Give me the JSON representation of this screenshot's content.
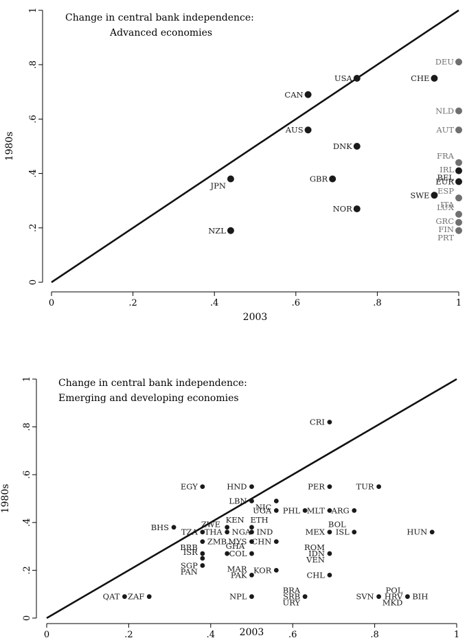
{
  "chart_data": [
    {
      "type": "scatter",
      "title": [
        "Change in central bank independence:",
        "Advanced economies"
      ],
      "xlabel": "2003",
      "ylabel": "1980s",
      "xlim": [
        0,
        1
      ],
      "ylim": [
        0,
        1
      ],
      "xticks": [
        "0",
        ".2",
        ".4",
        ".6",
        ".8",
        "1"
      ],
      "yticks": [
        "0",
        ".2",
        ".4",
        ".6",
        ".8",
        "1"
      ],
      "reference_line": "45-degree",
      "colors": {
        "dark": "#1a1a1a",
        "gray": "#707070"
      },
      "points": [
        {
          "label": "USA",
          "x": 0.75,
          "y": 0.75,
          "color": "dark",
          "pos": "left"
        },
        {
          "label": "CHE",
          "x": 0.94,
          "y": 0.75,
          "color": "dark",
          "pos": "left"
        },
        {
          "label": "CAN",
          "x": 0.63,
          "y": 0.69,
          "color": "dark",
          "pos": "left"
        },
        {
          "label": "AUS",
          "x": 0.63,
          "y": 0.56,
          "color": "dark",
          "pos": "left"
        },
        {
          "label": "DNK",
          "x": 0.75,
          "y": 0.5,
          "color": "dark",
          "pos": "left"
        },
        {
          "label": "GBR",
          "x": 0.69,
          "y": 0.38,
          "color": "dark",
          "pos": "left"
        },
        {
          "label": "JPN",
          "x": 0.44,
          "y": 0.38,
          "color": "dark",
          "pos": "left-below"
        },
        {
          "label": "NOR",
          "x": 0.75,
          "y": 0.27,
          "color": "dark",
          "pos": "left"
        },
        {
          "label": "SWE",
          "x": 0.94,
          "y": 0.32,
          "color": "dark",
          "pos": "left"
        },
        {
          "label": "NZL",
          "x": 0.44,
          "y": 0.19,
          "color": "dark",
          "pos": "left"
        },
        {
          "label": "DEU",
          "x": 1.0,
          "y": 0.81,
          "color": "gray",
          "pos": "left"
        },
        {
          "label": "NLD",
          "x": 1.0,
          "y": 0.63,
          "color": "gray",
          "pos": "left"
        },
        {
          "label": "AUT",
          "x": 1.0,
          "y": 0.56,
          "color": "gray",
          "pos": "left"
        },
        {
          "label": "FRA",
          "x": 1.0,
          "y": 0.44,
          "color": "gray",
          "pos": "left-above"
        },
        {
          "label": "IRL",
          "x": 1.0,
          "y": 0.44,
          "color": "gray",
          "pos": "left-below"
        },
        {
          "label": "BEL",
          "x": 1.0,
          "y": 0.41,
          "color": "dark",
          "pos": "left-below"
        },
        {
          "label": "EUR",
          "x": 1.0,
          "y": 0.37,
          "color": "dark",
          "pos": "left-label"
        },
        {
          "label": "ESP",
          "x": 1.0,
          "y": 0.31,
          "color": "gray",
          "pos": "left-above"
        },
        {
          "label": "ITA",
          "x": 1.0,
          "y": 0.31,
          "color": "gray",
          "pos": "left-below"
        },
        {
          "label": "LUX",
          "x": 1.0,
          "y": 0.25,
          "color": "gray",
          "pos": "left-above"
        },
        {
          "label": "GRC",
          "x": 1.0,
          "y": 0.25,
          "color": "gray",
          "pos": "left-below"
        },
        {
          "label": "FIN",
          "x": 1.0,
          "y": 0.22,
          "color": "gray",
          "pos": "left-below"
        },
        {
          "label": "PRT",
          "x": 1.0,
          "y": 0.19,
          "color": "gray",
          "pos": "left-below"
        }
      ]
    },
    {
      "type": "scatter",
      "title": [
        "Change in central bank independence:",
        "Emerging and developing economies"
      ],
      "xlabel": "2003",
      "ylabel": "1980s",
      "xlim": [
        0,
        1
      ],
      "ylim": [
        0,
        1
      ],
      "xticks": [
        "0",
        ".2",
        ".4",
        ".6",
        ".8",
        "1"
      ],
      "yticks": [
        "0",
        ".2",
        ".4",
        ".6",
        ".8",
        "1"
      ],
      "reference_line": "45-degree",
      "colors": {
        "dark": "#1a1a1a",
        "gray": "#707070"
      },
      "points": [
        {
          "label": "CRI",
          "x": 0.69,
          "y": 0.82,
          "color": "dark",
          "pos": "left"
        },
        {
          "label": "EGY",
          "x": 0.38,
          "y": 0.55,
          "color": "dark",
          "pos": "left"
        },
        {
          "label": "HND",
          "x": 0.5,
          "y": 0.55,
          "color": "dark",
          "pos": "left"
        },
        {
          "label": "PER",
          "x": 0.69,
          "y": 0.55,
          "color": "dark",
          "pos": "left"
        },
        {
          "label": "TUR",
          "x": 0.81,
          "y": 0.55,
          "color": "dark",
          "pos": "left"
        },
        {
          "label": "LBN",
          "x": 0.5,
          "y": 0.49,
          "color": "dark",
          "pos": "left"
        },
        {
          "label": "NIC",
          "x": 0.56,
          "y": 0.49,
          "color": "dark",
          "pos": "left-below"
        },
        {
          "label": "UGA",
          "x": 0.56,
          "y": 0.45,
          "color": "dark",
          "pos": "left"
        },
        {
          "label": "PHL",
          "x": 0.63,
          "y": 0.45,
          "color": "dark",
          "pos": "left"
        },
        {
          "label": "MLT",
          "x": 0.69,
          "y": 0.45,
          "color": "dark",
          "pos": "left"
        },
        {
          "label": "ARG",
          "x": 0.75,
          "y": 0.45,
          "color": "dark",
          "pos": "left"
        },
        {
          "label": "KEN",
          "x": 0.44,
          "y": 0.38,
          "color": "dark",
          "pos": "right-above"
        },
        {
          "label": "ETH",
          "x": 0.5,
          "y": 0.38,
          "color": "dark",
          "pos": "right-above"
        },
        {
          "label": "BHS",
          "x": 0.31,
          "y": 0.38,
          "color": "dark",
          "pos": "left"
        },
        {
          "label": "ZWE",
          "x": 0.38,
          "y": 0.36,
          "color": "dark",
          "pos": "right-above"
        },
        {
          "label": "TZA",
          "x": 0.38,
          "y": 0.36,
          "color": "dark",
          "pos": "left"
        },
        {
          "label": "THA",
          "x": 0.44,
          "y": 0.36,
          "color": "dark",
          "pos": "left"
        },
        {
          "label": "NGA",
          "x": 0.44,
          "y": 0.36,
          "color": "dark",
          "pos": "right"
        },
        {
          "label": "IND",
          "x": 0.5,
          "y": 0.36,
          "color": "dark",
          "pos": "right"
        },
        {
          "label": "BOL",
          "x": 0.69,
          "y": 0.36,
          "color": "dark",
          "pos": "right-above"
        },
        {
          "label": "MEX",
          "x": 0.69,
          "y": 0.36,
          "color": "dark",
          "pos": "left"
        },
        {
          "label": "ISL",
          "x": 0.75,
          "y": 0.36,
          "color": "dark",
          "pos": "left"
        },
        {
          "label": "HUN",
          "x": 0.94,
          "y": 0.36,
          "color": "dark",
          "pos": "left"
        },
        {
          "label": "ZMB",
          "x": 0.38,
          "y": 0.32,
          "color": "dark",
          "pos": "right"
        },
        {
          "label": "MYS",
          "x": 0.5,
          "y": 0.32,
          "color": "dark",
          "pos": "left"
        },
        {
          "label": "CHN",
          "x": 0.56,
          "y": 0.32,
          "color": "dark",
          "pos": "left"
        },
        {
          "label": "BRB",
          "x": 0.38,
          "y": 0.27,
          "color": "dark",
          "pos": "left-above"
        },
        {
          "label": "ISR",
          "x": 0.38,
          "y": 0.25,
          "color": "dark",
          "pos": "left-above"
        },
        {
          "label": "GHA",
          "x": 0.44,
          "y": 0.27,
          "color": "dark",
          "pos": "right-above"
        },
        {
          "label": "COL",
          "x": 0.5,
          "y": 0.27,
          "color": "dark",
          "pos": "left"
        },
        {
          "label": "ROM",
          "x": 0.69,
          "y": 0.27,
          "color": "dark",
          "pos": "left-above"
        },
        {
          "label": "IDN",
          "x": 0.69,
          "y": 0.27,
          "color": "dark",
          "pos": "left"
        },
        {
          "label": "VEN",
          "x": 0.69,
          "y": 0.27,
          "color": "dark",
          "pos": "left-below"
        },
        {
          "label": "SGP",
          "x": 0.38,
          "y": 0.22,
          "color": "dark",
          "pos": "left"
        },
        {
          "label": "PAN",
          "x": 0.38,
          "y": 0.22,
          "color": "dark",
          "pos": "left-below"
        },
        {
          "label": "MAR",
          "x": 0.5,
          "y": 0.18,
          "color": "dark",
          "pos": "left-above"
        },
        {
          "label": "PAK",
          "x": 0.5,
          "y": 0.18,
          "color": "dark",
          "pos": "left"
        },
        {
          "label": "KOR",
          "x": 0.56,
          "y": 0.2,
          "color": "dark",
          "pos": "left"
        },
        {
          "label": "CHL",
          "x": 0.69,
          "y": 0.18,
          "color": "dark",
          "pos": "left"
        },
        {
          "label": "QAT",
          "x": 0.19,
          "y": 0.09,
          "color": "dark",
          "pos": "left"
        },
        {
          "label": "ZAF",
          "x": 0.25,
          "y": 0.09,
          "color": "dark",
          "pos": "left"
        },
        {
          "label": "NPL",
          "x": 0.5,
          "y": 0.09,
          "color": "dark",
          "pos": "left"
        },
        {
          "label": "BRA",
          "x": 0.63,
          "y": 0.09,
          "color": "dark",
          "pos": "left-above"
        },
        {
          "label": "SRB",
          "x": 0.63,
          "y": 0.09,
          "color": "dark",
          "pos": "left"
        },
        {
          "label": "URY",
          "x": 0.63,
          "y": 0.09,
          "color": "dark",
          "pos": "left-below"
        },
        {
          "label": "SVN",
          "x": 0.81,
          "y": 0.09,
          "color": "dark",
          "pos": "left"
        },
        {
          "label": "POL",
          "x": 0.88,
          "y": 0.09,
          "color": "dark",
          "pos": "left-above"
        },
        {
          "label": "HRV",
          "x": 0.88,
          "y": 0.09,
          "color": "dark",
          "pos": "left"
        },
        {
          "label": "MKD",
          "x": 0.88,
          "y": 0.09,
          "color": "dark",
          "pos": "left-below"
        },
        {
          "label": "BIH",
          "x": 0.88,
          "y": 0.09,
          "color": "dark",
          "pos": "right"
        }
      ]
    }
  ]
}
